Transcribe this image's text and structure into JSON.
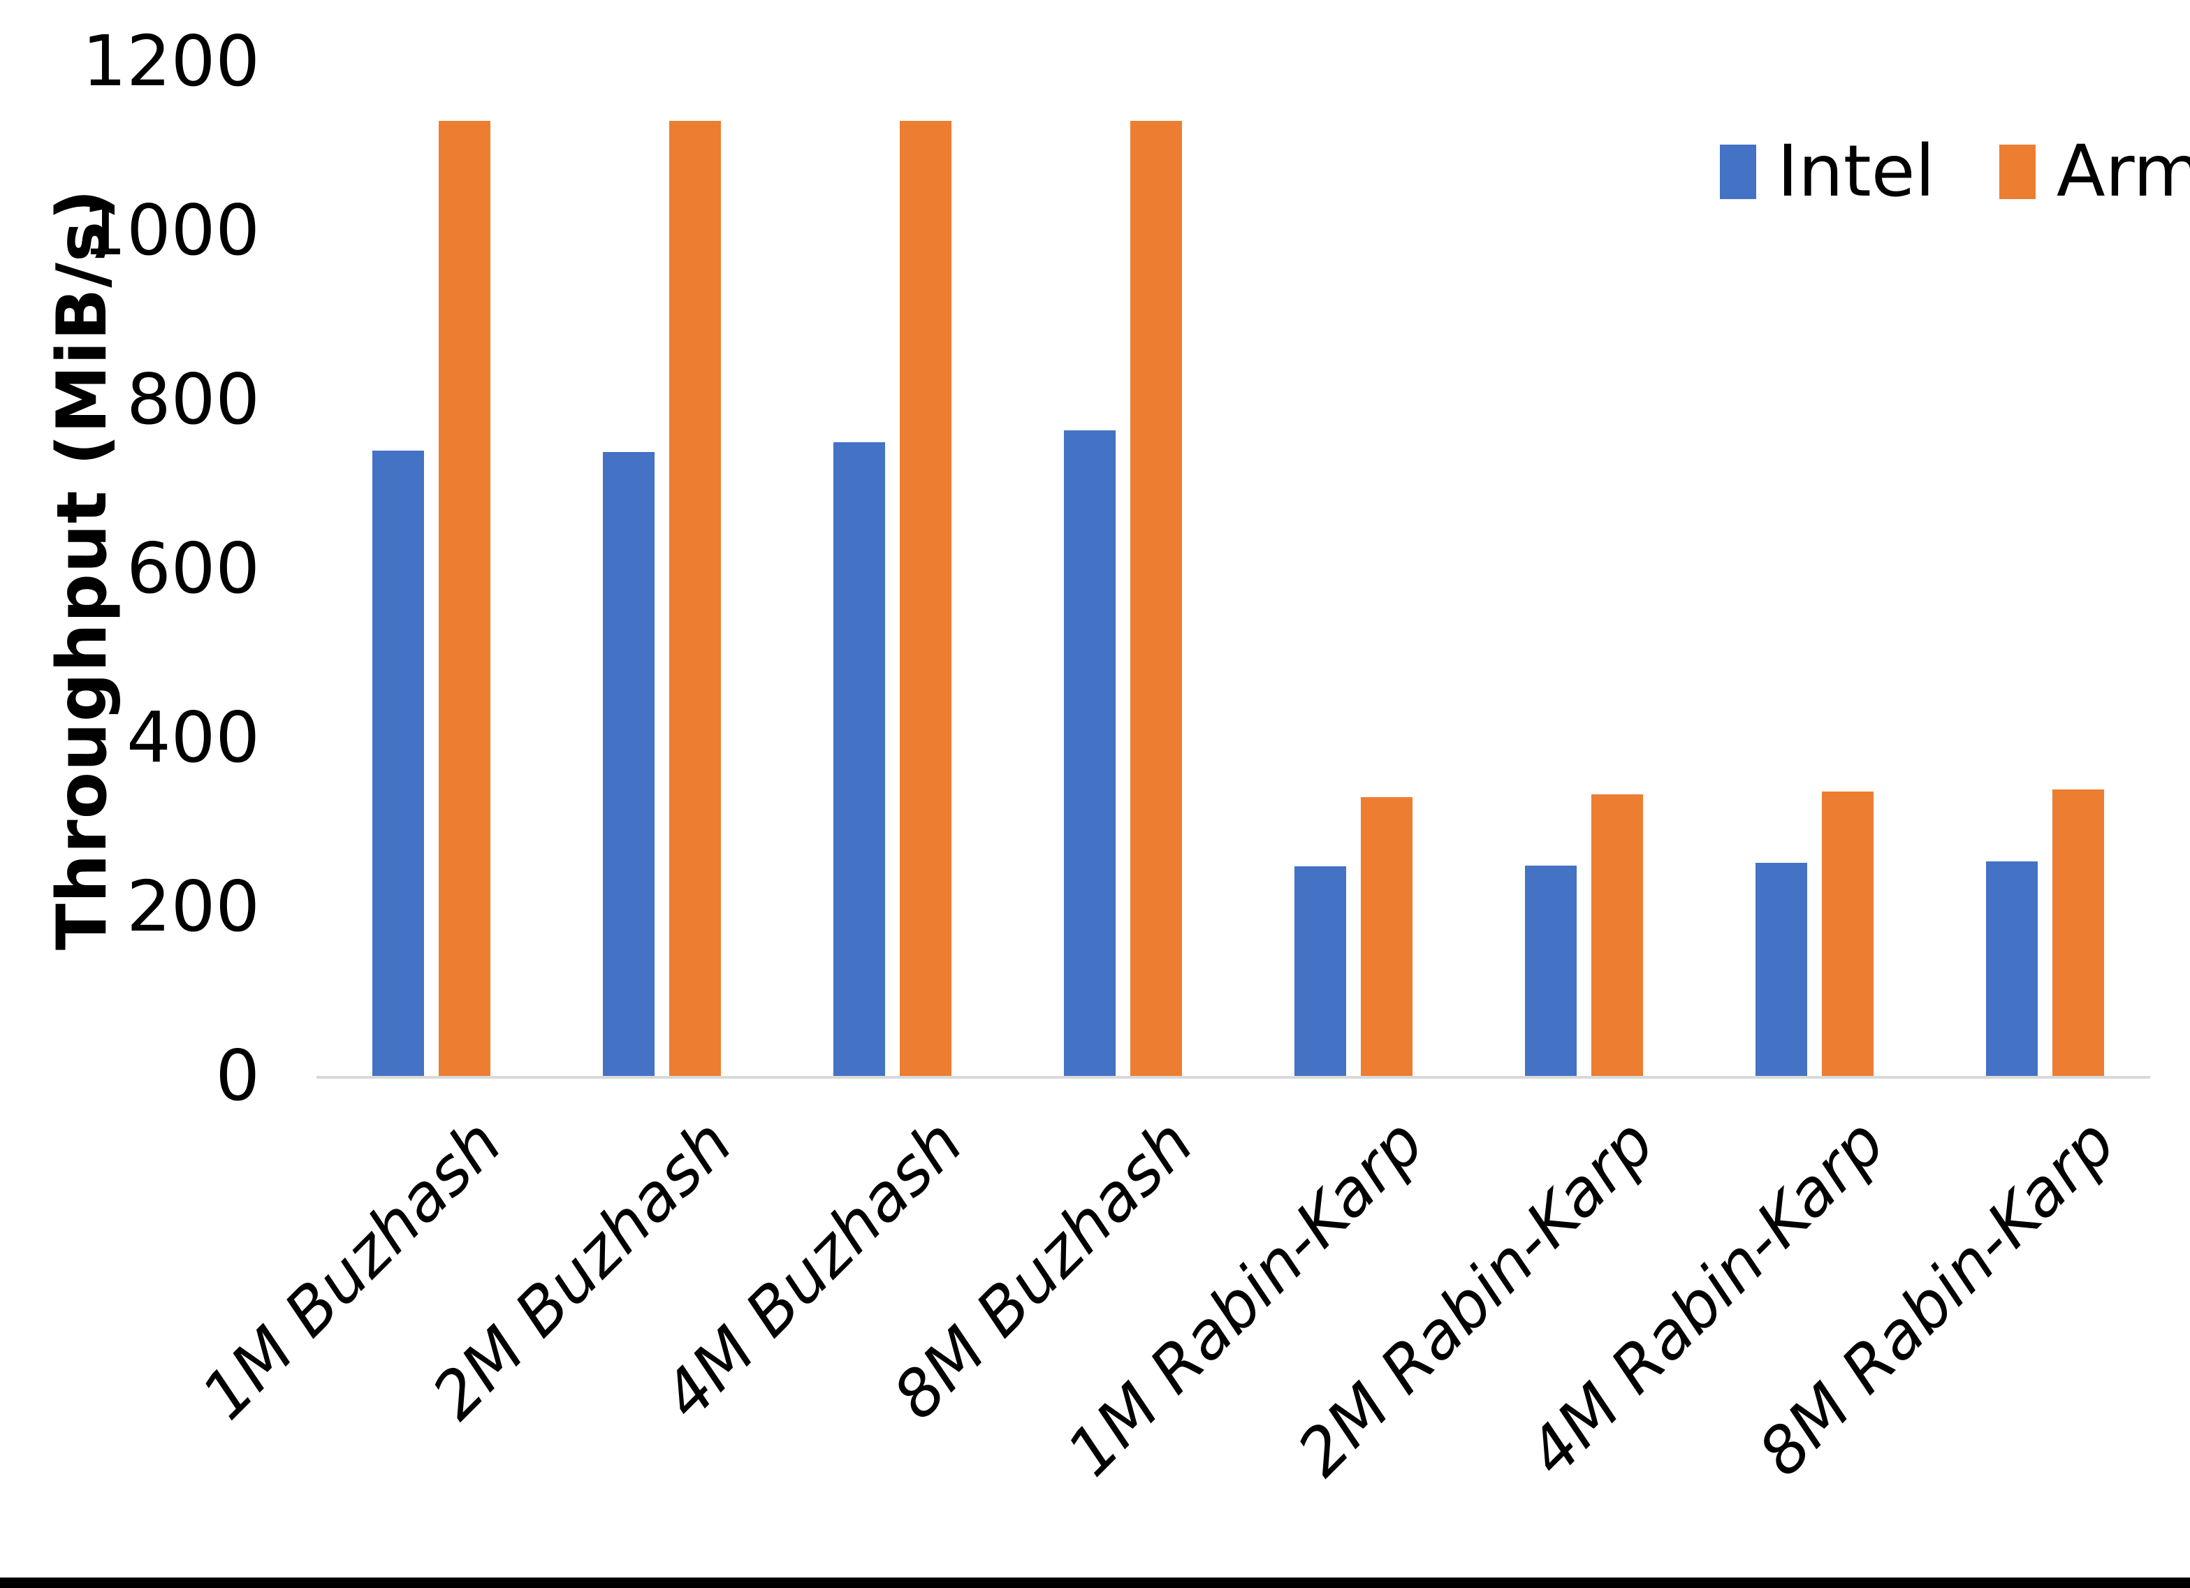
{
  "chart_data": {
    "type": "bar",
    "title": "",
    "ylabel": "Throughput (MiB/s)",
    "xlabel": "",
    "ylim": [
      0,
      1200
    ],
    "ytick_step": 200,
    "yticks": [
      0,
      200,
      400,
      600,
      800,
      1000,
      1200
    ],
    "grid": false,
    "legend_position": "top-right",
    "categories": [
      "1M Buzhash",
      "2M Buzhash",
      "4M Buzhash",
      "8M Buzhash",
      "1M Rabin-Karp",
      "2M Rabin-Karp",
      "4M Rabin-Karp",
      "8M Rabin-Karp"
    ],
    "series": [
      {
        "name": "Intel",
        "color": "#4472C4",
        "values": [
          740,
          738,
          750,
          764,
          248,
          249,
          252,
          254
        ]
      },
      {
        "name": "Arm",
        "color": "#ED7D31",
        "values": [
          1130,
          1130,
          1130,
          1130,
          330,
          333,
          336,
          339
        ]
      }
    ]
  },
  "colors": {
    "intel": "#4472C4",
    "arm": "#ED7D31",
    "axis_line": "#D9D9D9",
    "text": "#000000",
    "bottom_bar": "#000000"
  }
}
